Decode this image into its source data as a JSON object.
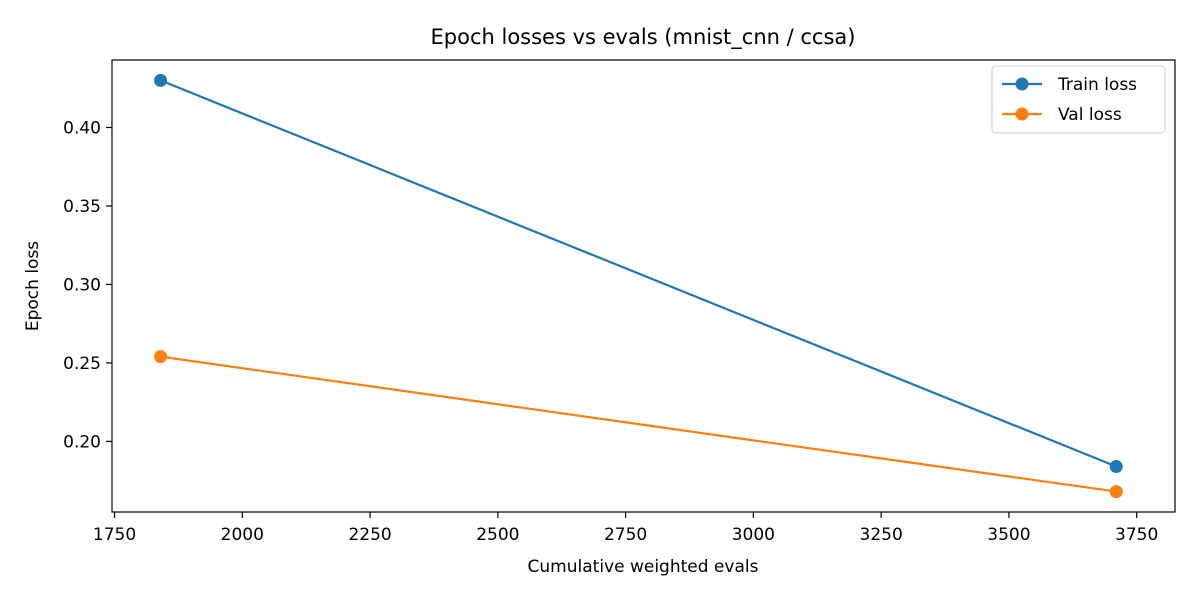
{
  "chart_data": {
    "type": "line",
    "title": "Epoch losses vs evals (mnist_cnn / ccsa)",
    "xlabel": "Cumulative weighted evals",
    "ylabel": "Epoch loss",
    "xlim": [
      1745,
      3825
    ],
    "ylim": [
      0.155,
      0.443
    ],
    "xticks": [
      1750,
      2000,
      2250,
      2500,
      2750,
      3000,
      3250,
      3500,
      3750
    ],
    "xtick_labels": [
      "1750",
      "2000",
      "2250",
      "2500",
      "2750",
      "3000",
      "3250",
      "3500",
      "3750"
    ],
    "yticks": [
      0.2,
      0.25,
      0.3,
      0.35,
      0.4
    ],
    "ytick_labels": [
      "0.20",
      "0.25",
      "0.30",
      "0.35",
      "0.40"
    ],
    "grid": false,
    "legend_position": "top-right",
    "series": [
      {
        "name": "Train loss",
        "color": "#1f77b4",
        "marker": "circle",
        "x": [
          1840,
          3710
        ],
        "y": [
          0.43,
          0.184
        ]
      },
      {
        "name": "Val loss",
        "color": "#ff7f0e",
        "marker": "circle",
        "x": [
          1840,
          3710
        ],
        "y": [
          0.254,
          0.168
        ]
      }
    ]
  }
}
